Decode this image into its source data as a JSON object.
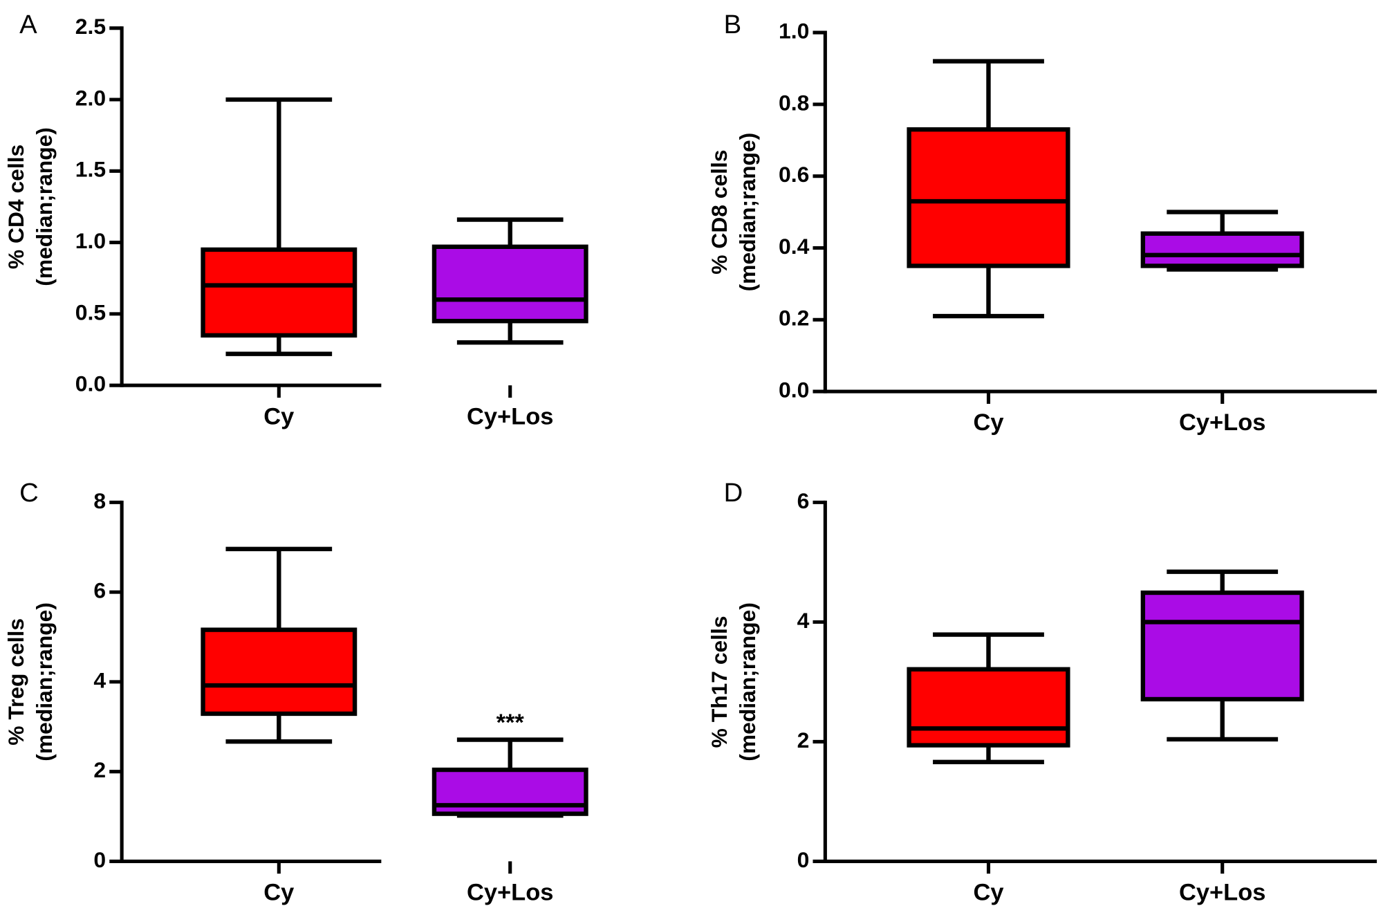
{
  "chart_data": [
    {
      "type": "box",
      "panel": "A",
      "ylabel": [
        "% CD4  cells",
        "(median;range)"
      ],
      "categories": [
        "Cy",
        "Cy+Los"
      ],
      "boxes": [
        {
          "min": 0.22,
          "q1": 0.35,
          "median": 0.7,
          "q3": 0.95,
          "max": 2.0,
          "color": "#ff0000"
        },
        {
          "min": 0.3,
          "q1": 0.45,
          "median": 0.6,
          "q3": 0.97,
          "max": 1.16,
          "color": "#aa0ce6"
        }
      ],
      "ylim": [
        0,
        2.5
      ],
      "yticks": [
        {
          "value": 0,
          "label": "0.0"
        },
        0.5,
        {
          "value": 1,
          "label": "1.0"
        },
        1.5,
        {
          "value": 2,
          "label": "2.0"
        },
        2.5
      ]
    },
    {
      "type": "box",
      "panel": "B",
      "ylabel": [
        "% CD8  cells",
        "(median;range)"
      ],
      "categories": [
        "Cy",
        "Cy+Los"
      ],
      "boxes": [
        {
          "min": 0.21,
          "q1": 0.35,
          "median": 0.53,
          "q3": 0.73,
          "max": 0.92,
          "color": "#ff0000"
        },
        {
          "min": 0.34,
          "q1": 0.35,
          "median": 0.38,
          "q3": 0.44,
          "max": 0.5,
          "color": "#aa0ce6"
        }
      ],
      "ylim": [
        0,
        1
      ],
      "yticks": [
        {
          "value": 0,
          "label": "0.0"
        },
        0.2,
        0.4,
        0.6,
        0.8,
        {
          "value": 1,
          "label": "1.0"
        }
      ]
    },
    {
      "type": "box",
      "panel": "C",
      "ylabel": [
        "% Treg cells",
        "(median;range)"
      ],
      "categories": [
        "Cy",
        "Cy+Los"
      ],
      "boxes": [
        {
          "min": 2.67,
          "q1": 3.29,
          "median": 3.92,
          "q3": 5.16,
          "max": 6.96,
          "color": "#ff0000"
        },
        {
          "min": 1.02,
          "q1": 1.06,
          "median": 1.25,
          "q3": 2.04,
          "max": 2.71,
          "color": "#aa0ce6",
          "label": "***"
        }
      ],
      "ylim": [
        0,
        8
      ],
      "yticks": [
        0,
        2,
        4,
        6,
        8
      ]
    },
    {
      "type": "box",
      "panel": "D",
      "ylabel": [
        "% Th17  cells",
        "(median;range)"
      ],
      "categories": [
        "Cy",
        "Cy+Los"
      ],
      "boxes": [
        {
          "min": 1.66,
          "q1": 1.94,
          "median": 2.22,
          "q3": 3.21,
          "max": 3.79,
          "color": "#ff0000"
        },
        {
          "min": 2.04,
          "q1": 2.71,
          "median": 4.0,
          "q3": 4.49,
          "max": 4.84,
          "color": "#aa0ce6"
        }
      ],
      "ylim": [
        0,
        6
      ],
      "yticks": [
        0,
        2,
        4,
        6
      ]
    }
  ]
}
